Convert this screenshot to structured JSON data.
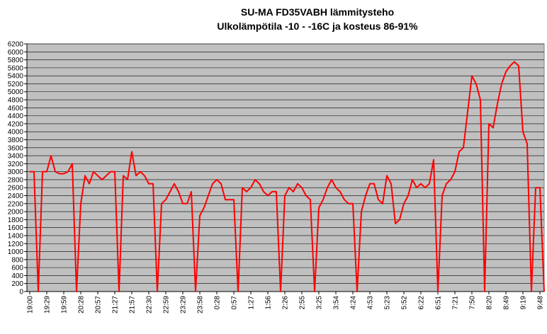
{
  "chart_data": {
    "type": "line",
    "title": "SU-MA FD35VABH lämmitysteho",
    "subtitle": "Ulkolämpötila  -10 - -16C ja kosteus 86-91%",
    "categories": [
      "19:00",
      null,
      null,
      null,
      "19:29",
      null,
      null,
      null,
      "19:59",
      null,
      null,
      null,
      "20:28",
      null,
      null,
      null,
      "20:57",
      null,
      null,
      null,
      "21:27",
      null,
      null,
      null,
      "21:57",
      null,
      null,
      null,
      "22:30",
      null,
      null,
      null,
      "22:59",
      null,
      null,
      null,
      "23:29",
      null,
      null,
      null,
      "23:58",
      null,
      null,
      null,
      "0:28",
      null,
      null,
      null,
      "0:57",
      null,
      null,
      null,
      "1:27",
      null,
      null,
      null,
      "1:56",
      null,
      null,
      null,
      "2:26",
      null,
      null,
      null,
      "2:55",
      null,
      null,
      null,
      "3:25",
      null,
      null,
      null,
      "3:54",
      null,
      null,
      null,
      "4:24",
      null,
      null,
      null,
      "4:53",
      null,
      null,
      null,
      "5:23",
      null,
      null,
      null,
      "5:52",
      null,
      null,
      null,
      "6:22",
      null,
      null,
      null,
      "6:51",
      null,
      null,
      null,
      "7:21",
      null,
      null,
      null,
      "7:50",
      null,
      null,
      null,
      "8:20",
      null,
      null,
      null,
      "8:49",
      null,
      null,
      null,
      "9:19",
      null,
      null,
      null,
      "9:48",
      null
    ],
    "series": [
      {
        "name": "lämmitysteho",
        "color": "#ff0000",
        "values": [
          3000,
          3000,
          0,
          3000,
          3000,
          3400,
          3000,
          2950,
          2950,
          3000,
          3200,
          0,
          2200,
          2900,
          2700,
          3000,
          2900,
          2800,
          2900,
          3000,
          3000,
          0,
          2900,
          2800,
          3500,
          2900,
          3000,
          2900,
          2700,
          2700,
          0,
          2200,
          2300,
          2500,
          2700,
          2500,
          2200,
          2200,
          2500,
          0,
          1900,
          2100,
          2400,
          2700,
          2800,
          2700,
          2300,
          2300,
          2300,
          0,
          2600,
          2500,
          2600,
          2800,
          2700,
          2500,
          2400,
          2500,
          2500,
          0,
          2400,
          2600,
          2500,
          2700,
          2600,
          2400,
          2300,
          0,
          2100,
          2300,
          2600,
          2800,
          2600,
          2500,
          2300,
          2200,
          2200,
          0,
          2000,
          2400,
          2700,
          2700,
          2300,
          2200,
          2900,
          2700,
          1700,
          1800,
          2200,
          2400,
          2800,
          2600,
          2700,
          2600,
          2700,
          3300,
          0,
          2400,
          2700,
          2800,
          3000,
          3500,
          3600,
          4500,
          5400,
          5200,
          4800,
          0,
          4200,
          4100,
          4700,
          5200,
          5500,
          5650,
          5750,
          5650,
          4000,
          3700,
          0,
          2600,
          2600,
          0
        ]
      }
    ],
    "ylim": [
      0,
      6200
    ],
    "yticks": [
      0,
      200,
      400,
      600,
      800,
      1000,
      1200,
      1400,
      1600,
      1800,
      2000,
      2200,
      2400,
      2600,
      2800,
      3000,
      3200,
      3400,
      3600,
      3800,
      4000,
      4200,
      4400,
      4600,
      4800,
      5000,
      5200,
      5400,
      5600,
      5800,
      6000,
      6200
    ],
    "grid": true
  }
}
